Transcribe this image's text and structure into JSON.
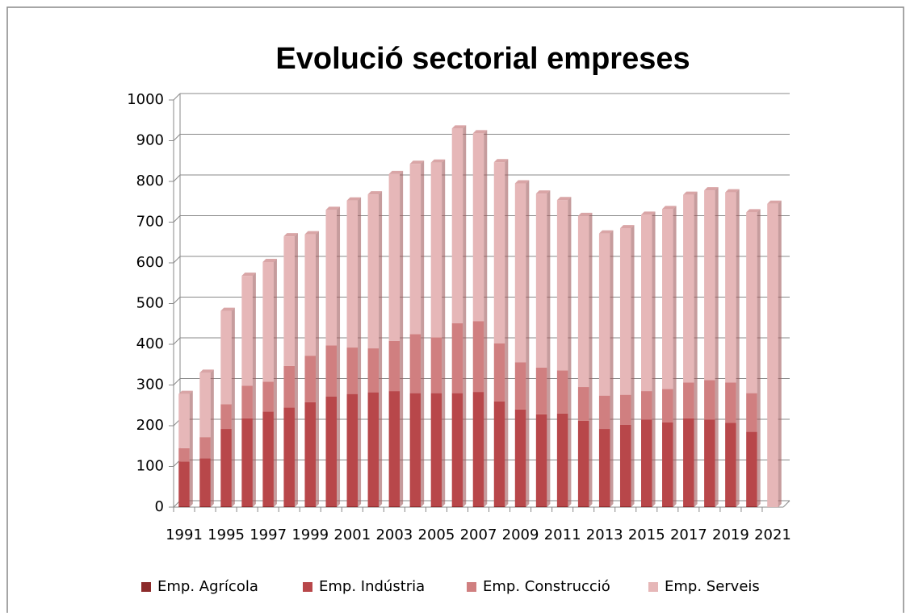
{
  "chart_data": {
    "type": "stacked_bar",
    "title": "Evolució sectorial empreses",
    "categories": [
      "1991",
      null,
      "1995",
      null,
      "1997",
      null,
      "1999",
      null,
      "2001",
      null,
      "2003",
      null,
      "2005",
      null,
      "2007",
      null,
      "2009",
      null,
      "2011",
      null,
      "2013",
      null,
      "2015",
      null,
      "2017",
      null,
      "2019",
      null,
      "2021"
    ],
    "series": [
      {
        "name": "Emp. Agrícola",
        "color": "#8c2b2b",
        "values": [
          2,
          2,
          2,
          2,
          2,
          2,
          2,
          2,
          2,
          2,
          2,
          2,
          2,
          2,
          2,
          2,
          2,
          2,
          2,
          2,
          2,
          2,
          2,
          2,
          2,
          2,
          2,
          2,
          0
        ]
      },
      {
        "name": "Emp. Indústria",
        "color": "#b8474a",
        "values": [
          110,
          118,
          190,
          216,
          233,
          243,
          256,
          270,
          276,
          280,
          283,
          278,
          278,
          278,
          281,
          258,
          238,
          226,
          228,
          210,
          190,
          200,
          213,
          206,
          216,
          213,
          205,
          183,
          0
        ]
      },
      {
        "name": "Emp. Construcció",
        "color": "#d07f80",
        "values": [
          33,
          52,
          61,
          80,
          73,
          102,
          114,
          125,
          114,
          108,
          123,
          145,
          137,
          172,
          174,
          142,
          116,
          115,
          106,
          83,
          82,
          74,
          70,
          82,
          88,
          97,
          99,
          95,
          0
        ]
      },
      {
        "name": "Emp. Serveis",
        "color": "#e6b7b8",
        "values": [
          133,
          158,
          229,
          270,
          294,
          318,
          298,
          333,
          361,
          378,
          410,
          418,
          429,
          478,
          461,
          445,
          439,
          427,
          418,
          420,
          398,
          409,
          433,
          442,
          461,
          466,
          467,
          444,
          745
        ]
      }
    ],
    "ylim": [
      0,
      1000
    ],
    "yticks": [
      0,
      100,
      200,
      300,
      400,
      500,
      600,
      700,
      800,
      900,
      1000
    ],
    "grid": true,
    "legend": "bottom"
  }
}
